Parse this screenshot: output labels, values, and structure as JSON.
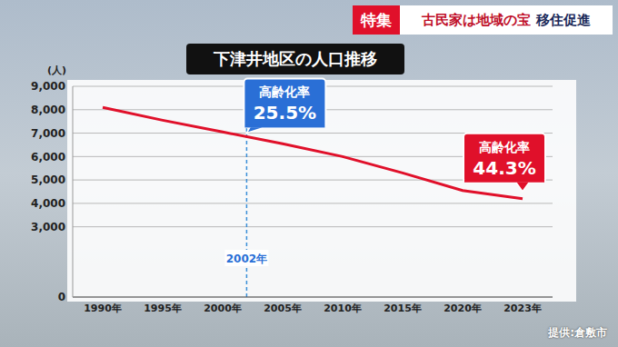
{
  "chart_data": {
    "type": "line",
    "title": "下津井地区の人口推移",
    "header": {
      "tag": "特集",
      "text": "古民家は地域の宝 移住促進"
    },
    "y_unit": "(人)",
    "source": "提供:倉敷市",
    "categories": [
      "1990年",
      "1995年",
      "2000年",
      "2005年",
      "2010年",
      "2015年",
      "2020年",
      "2023年"
    ],
    "values": [
      8100,
      7550,
      7050,
      6550,
      6000,
      5300,
      4550,
      4200
    ],
    "color": "#e0102a",
    "ylim": [
      0,
      9000
    ],
    "yticks": [
      0,
      {
        "value": 3000,
        "label": "3,000"
      },
      {
        "value": 4000,
        "label": "4,000"
      },
      {
        "value": 5000,
        "label": "5,000"
      },
      {
        "value": 6000,
        "label": "6,000"
      },
      {
        "value": 7000,
        "label": "7,000"
      },
      {
        "value": 8000,
        "label": "8,000"
      },
      {
        "value": 9000,
        "label": "9,000"
      }
    ],
    "grid": true,
    "reference_line": {
      "x": 2002,
      "label": "2002年",
      "line_style": "dashed",
      "color": "#3a8fd8"
    },
    "annotations": [
      {
        "x": 2002,
        "text": "高齢化率",
        "value": 25.5,
        "value_label": "25.5%",
        "color": "#2a6fd6"
      },
      {
        "x": 2023,
        "text": "高齢化率",
        "value": 44.3,
        "value_label": "44.3%",
        "color": "#e0102a"
      }
    ]
  }
}
